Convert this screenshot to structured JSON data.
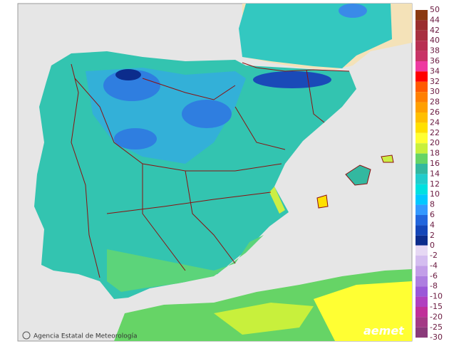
{
  "legend": {
    "labels": [
      50,
      44,
      42,
      40,
      38,
      36,
      34,
      32,
      30,
      28,
      26,
      24,
      22,
      20,
      18,
      16,
      14,
      12,
      10,
      8,
      6,
      4,
      2,
      0
    ],
    "colors": [
      "#8b3a10",
      "#9a2e2e",
      "#a83040",
      "#b83052",
      "#c83466",
      "#ee3aa0",
      "#ff0000",
      "#ff5a00",
      "#ff8000",
      "#ffa000",
      "#ffbf00",
      "#ffe000",
      "#ffff33",
      "#c8f03c",
      "#66d466",
      "#33b8a0",
      "#22cccc",
      "#00e0e0",
      "#00c8ff",
      "#3399ff",
      "#2266dd",
      "#1446b8",
      "#0c2c8c",
      "#061a60"
    ],
    "negative_labels": [
      -2,
      -4,
      -6,
      -8,
      -10,
      -15,
      -20,
      -25,
      -30
    ],
    "negative_colors": [
      "#e6d8f4",
      "#d4bdf0",
      "#c29ee8",
      "#ad7ee0",
      "#9a58d8",
      "#b040c0",
      "#c0309a",
      "#a43a86",
      "#8a3a7a"
    ]
  },
  "footer": {
    "agency": "Agencia Estatal de Meteorología",
    "logo": "aemet"
  }
}
